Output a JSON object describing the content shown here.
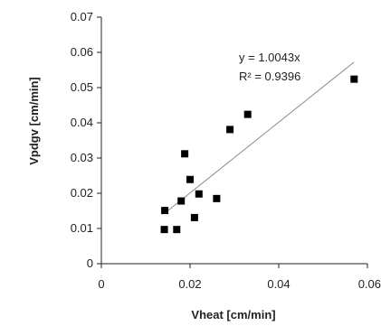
{
  "chart_data": {
    "type": "scatter",
    "title": "",
    "xlabel": "Vheat [cm/min]",
    "ylabel": "Vpdgv [cm/min]",
    "xlim": [
      0,
      0.06
    ],
    "ylim": [
      0,
      0.07
    ],
    "x_ticks": [
      "0",
      "0.02",
      "0.04",
      "0.06"
    ],
    "y_ticks": [
      "0",
      "0.01",
      "0.02",
      "0.03",
      "0.04",
      "0.05",
      "0.06",
      "0.07"
    ],
    "grid": false,
    "legend": "none",
    "marker_color": "#000000",
    "trendline_color": "#8c8c8c",
    "points": [
      {
        "x": 0.0142,
        "y": 0.0097
      },
      {
        "x": 0.0143,
        "y": 0.0151
      },
      {
        "x": 0.017,
        "y": 0.0097
      },
      {
        "x": 0.018,
        "y": 0.0178
      },
      {
        "x": 0.0188,
        "y": 0.0312
      },
      {
        "x": 0.02,
        "y": 0.0239
      },
      {
        "x": 0.021,
        "y": 0.0131
      },
      {
        "x": 0.022,
        "y": 0.0198
      },
      {
        "x": 0.026,
        "y": 0.0185
      },
      {
        "x": 0.029,
        "y": 0.0381
      },
      {
        "x": 0.033,
        "y": 0.0424
      },
      {
        "x": 0.057,
        "y": 0.0524
      }
    ],
    "trendline": {
      "slope": 1.0043,
      "x_range": [
        0.0142,
        0.057
      ],
      "equation": "y = 1.0043x",
      "r_squared": "R² = 0.9396"
    }
  }
}
